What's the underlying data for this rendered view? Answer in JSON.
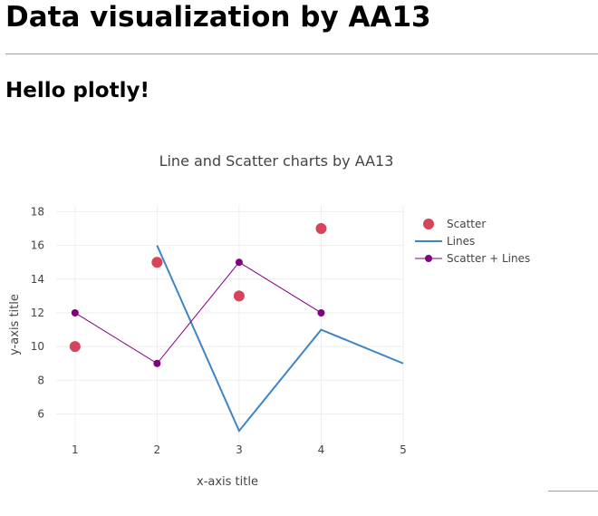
{
  "page": {
    "title": "Data visualization by AA13",
    "subtitle": "Hello plotly!"
  },
  "chart_data": {
    "type": "line",
    "title": "Line and Scatter charts by AA13",
    "xlabel": "x-axis title",
    "ylabel": "y-axis title",
    "xlim": [
      0.77,
      5
    ],
    "ylim": [
      4.2,
      18.4
    ],
    "x_ticks": [
      1,
      2,
      3,
      4,
      5
    ],
    "y_ticks": [
      6,
      8,
      10,
      12,
      14,
      16,
      18
    ],
    "grid": true,
    "legend_position": "top-right",
    "series": [
      {
        "name": "Scatter",
        "mode": "markers",
        "color": "#d6435a",
        "x": [
          1,
          2,
          3,
          4
        ],
        "y": [
          10,
          15,
          13,
          17
        ]
      },
      {
        "name": "Lines",
        "mode": "lines",
        "color": "#3d85c6",
        "x": [
          2,
          3,
          4,
          5
        ],
        "y": [
          16,
          5,
          11,
          9
        ]
      },
      {
        "name": "Scatter + Lines",
        "mode": "lines+markers",
        "color": "#800080",
        "x": [
          1,
          2,
          3,
          4
        ],
        "y": [
          12,
          9,
          15,
          12
        ]
      }
    ]
  }
}
